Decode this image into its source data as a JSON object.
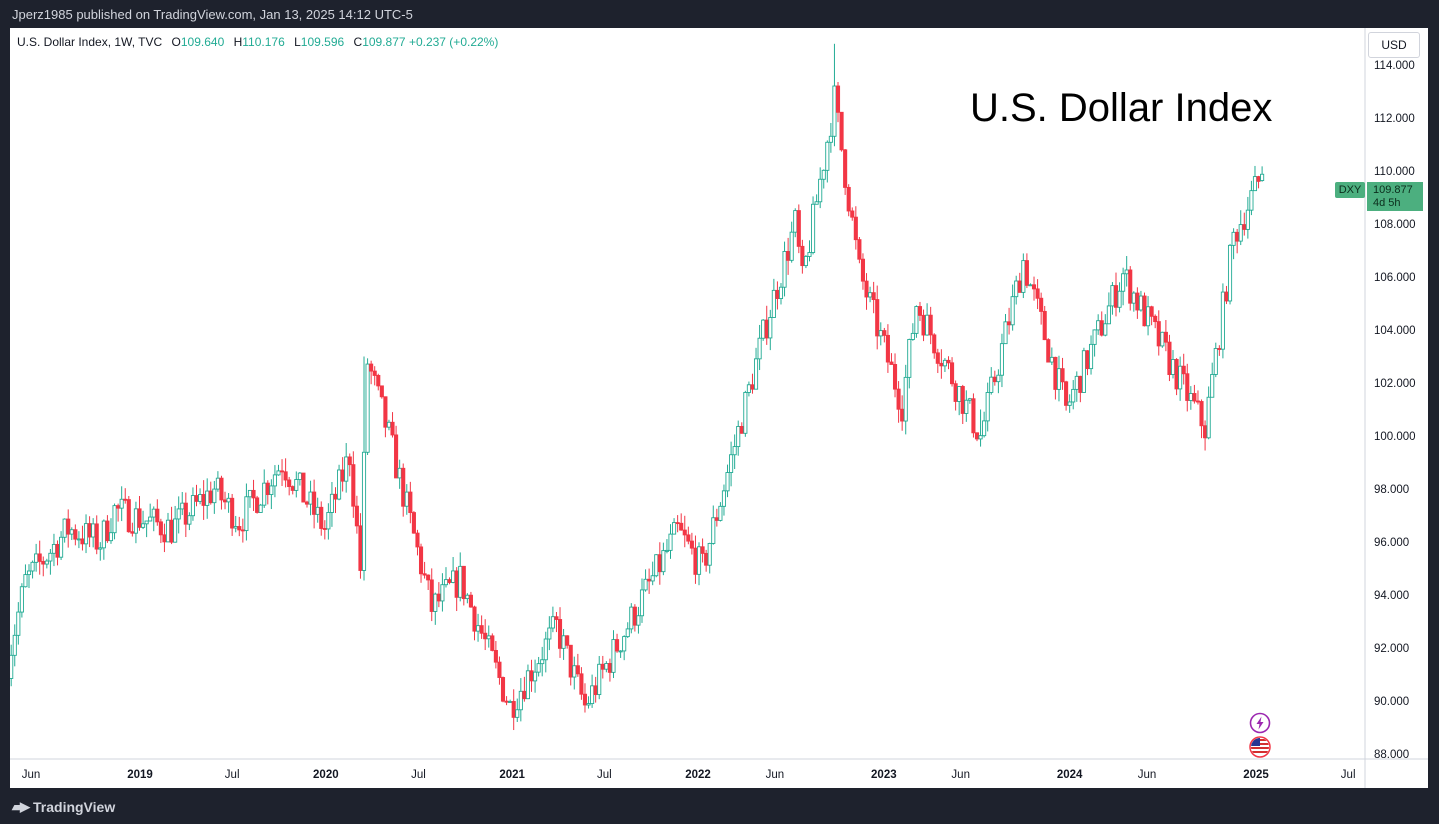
{
  "header": {
    "published": "Jperz1985 published on TradingView.com, Jan 13, 2025 14:12 UTC-5"
  },
  "legend": {
    "symbol": "U.S. Dollar Index, 1W, TVC",
    "open_label": "O",
    "open": "109.640",
    "high_label": "H",
    "high": "110.176",
    "low_label": "L",
    "low": "109.596",
    "close_label": "C",
    "close": "109.877",
    "change": "+0.237 (+0.22%)"
  },
  "currency": "USD",
  "annotation": "U.S. Dollar Index",
  "price_tag": {
    "symbol": "DXY",
    "price": "109.877",
    "countdown": "4d 5h"
  },
  "footer": {
    "brand": "TradingView"
  },
  "colors": {
    "up": "#22ab94",
    "down": "#f23645",
    "tag": "#4caf7f"
  },
  "chart_data": {
    "type": "candlestick",
    "title": "U.S. Dollar Index",
    "interval": "1W",
    "ylim": [
      87.5,
      115
    ],
    "y_ticks": [
      "88.000",
      "90.000",
      "92.000",
      "94.000",
      "96.000",
      "98.000",
      "100.000",
      "102.000",
      "104.000",
      "106.000",
      "108.000",
      "110.000",
      "112.000",
      "114.000"
    ],
    "x_ticks": [
      {
        "label": "Jun",
        "date": "2018-06-01",
        "bold": false
      },
      {
        "label": "2019",
        "date": "2019-01-01",
        "bold": true
      },
      {
        "label": "Jul",
        "date": "2019-07-01",
        "bold": false
      },
      {
        "label": "2020",
        "date": "2020-01-01",
        "bold": true
      },
      {
        "label": "Jul",
        "date": "2020-07-01",
        "bold": false
      },
      {
        "label": "2021",
        "date": "2021-01-01",
        "bold": true
      },
      {
        "label": "Jul",
        "date": "2021-07-01",
        "bold": false
      },
      {
        "label": "2022",
        "date": "2022-01-01",
        "bold": true
      },
      {
        "label": "Jun",
        "date": "2022-06-01",
        "bold": false
      },
      {
        "label": "2023",
        "date": "2023-01-01",
        "bold": true
      },
      {
        "label": "Jun",
        "date": "2023-06-01",
        "bold": false
      },
      {
        "label": "2024",
        "date": "2024-01-01",
        "bold": true
      },
      {
        "label": "Jun",
        "date": "2024-06-01",
        "bold": false
      },
      {
        "label": "2025",
        "date": "2025-01-01",
        "bold": true
      },
      {
        "label": "Jul",
        "date": "2025-07-01",
        "bold": false
      }
    ],
    "last_close": 109.877,
    "weekly_close_path": [
      [
        "2018-04-16",
        91.5
      ],
      [
        "2018-05-21",
        94.5
      ],
      [
        "2018-08-13",
        96.5
      ],
      [
        "2018-10-15",
        96.0
      ],
      [
        "2018-11-12",
        97.2
      ],
      [
        "2019-03-04",
        96.5
      ],
      [
        "2019-05-27",
        98.0
      ],
      [
        "2019-07-15",
        96.8
      ],
      [
        "2019-10-07",
        99.0
      ],
      [
        "2019-12-30",
        96.5
      ],
      [
        "2020-02-17",
        99.3
      ],
      [
        "2020-03-09",
        95.0
      ],
      [
        "2020-03-23",
        102.8
      ],
      [
        "2020-05-04",
        100.0
      ],
      [
        "2020-07-27",
        93.5
      ],
      [
        "2020-09-21",
        94.6
      ],
      [
        "2020-12-28",
        89.8
      ],
      [
        "2021-03-29",
        92.8
      ],
      [
        "2021-05-24",
        89.8
      ],
      [
        "2021-11-22",
        96.4
      ],
      [
        "2022-01-10",
        95.0
      ],
      [
        "2022-05-16",
        104.3
      ],
      [
        "2022-07-11",
        108.0
      ],
      [
        "2022-07-25",
        105.8
      ],
      [
        "2022-09-26",
        112.7
      ],
      [
        "2022-11-14",
        106.2
      ],
      [
        "2023-02-06",
        101.2
      ],
      [
        "2023-03-06",
        105.0
      ],
      [
        "2023-07-10",
        100.0
      ],
      [
        "2023-10-02",
        106.6
      ],
      [
        "2023-12-25",
        101.0
      ],
      [
        "2024-04-15",
        106.1
      ],
      [
        "2024-09-23",
        100.3
      ],
      [
        "2024-11-18",
        107.5
      ],
      [
        "2025-01-13",
        109.877
      ]
    ],
    "notable_wicks": [
      {
        "date": "2020-03-16",
        "high": 103.0,
        "low": 94.6
      },
      {
        "date": "2022-09-26",
        "high": 114.8,
        "low": 111.5
      },
      {
        "date": "2023-07-10",
        "high": 101.0,
        "low": 99.6
      },
      {
        "date": "2021-01-04",
        "high": 90.4,
        "low": 89.2
      }
    ]
  }
}
